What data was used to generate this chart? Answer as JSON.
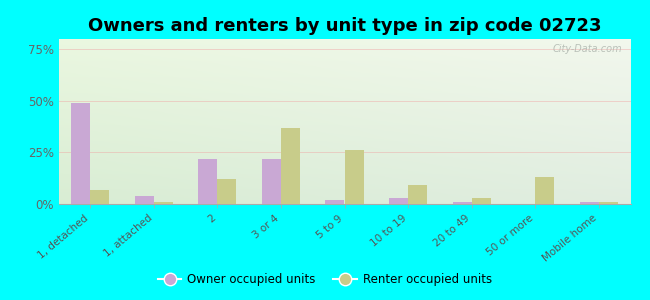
{
  "title": "Owners and renters by unit type in zip code 02723",
  "categories": [
    "1, detached",
    "1, attached",
    "2",
    "3 or 4",
    "5 to 9",
    "10 to 19",
    "20 to 49",
    "50 or more",
    "Mobile home"
  ],
  "owner_values": [
    49,
    4,
    22,
    22,
    2,
    3,
    1,
    0,
    1
  ],
  "renter_values": [
    7,
    1,
    12,
    37,
    26,
    9,
    3,
    13,
    1
  ],
  "owner_color": "#c9a8d4",
  "renter_color": "#c8cc8a",
  "yticks": [
    0,
    25,
    50,
    75
  ],
  "ytick_labels": [
    "0%",
    "25%",
    "50%",
    "75%"
  ],
  "ylim": [
    0,
    80
  ],
  "background_color": "#00ffff",
  "watermark": "City-Data.com",
  "legend_owner": "Owner occupied units",
  "legend_renter": "Renter occupied units",
  "bar_width": 0.3,
  "title_fontsize": 13
}
